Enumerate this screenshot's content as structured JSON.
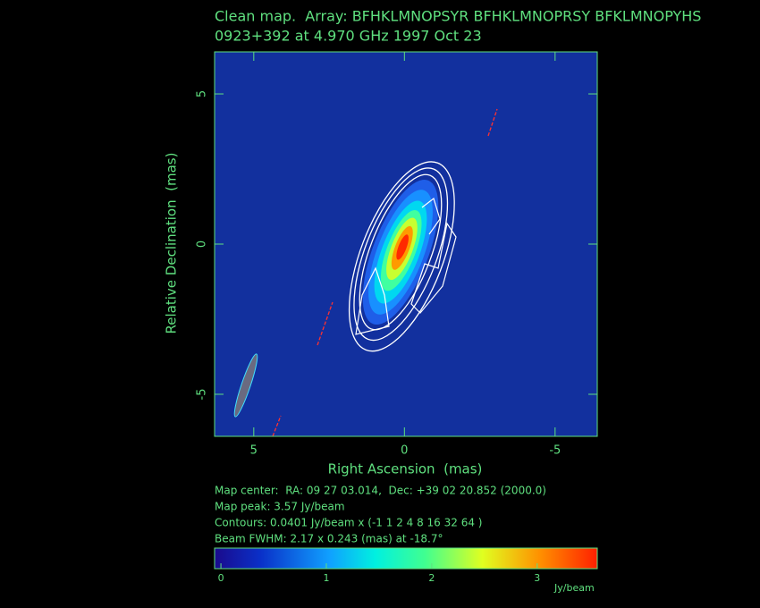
{
  "chart_data": {
    "type": "image",
    "title": "Clean map.  Array: BFHKLMNOPSYR BFHKLMNOPRSY BFKLMNOPYHS",
    "subtitle": "0923+392 at 4.970 GHz 1997 Oct 23",
    "xlabel": "Right Ascension  (mas)",
    "ylabel": "Relative Declination  (mas)",
    "xlim": [
      6.3,
      -6.4
    ],
    "ylim": [
      -6.4,
      6.4
    ],
    "xticks": [
      5,
      0,
      -5
    ],
    "yticks": [
      -5,
      0,
      5
    ],
    "notes": [
      "Map center:  RA: 09 27 03.014,  Dec: +39 02 20.852 (2000.0)",
      "Map peak: 3.57 Jy/beam",
      "Contours: 0.0401 Jy/beam x (-1 1 2 4 8 16 32 64 )",
      "Beam FWHM: 2.17 x 0.243 (mas) at -18.7°"
    ],
    "colorbar": {
      "lim": [
        -0.06,
        3.57
      ],
      "ticks": [
        0,
        1,
        2,
        3
      ],
      "label": "Jy/beam"
    }
  }
}
